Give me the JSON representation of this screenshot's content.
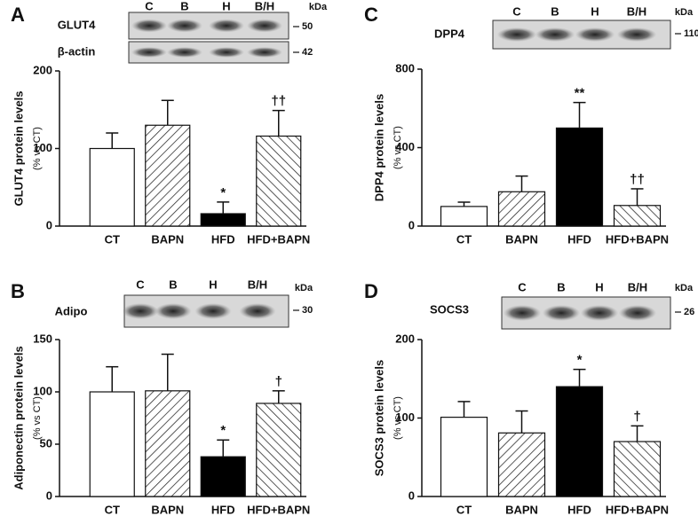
{
  "chart_data": [
    {
      "type": "bar",
      "panel": "A",
      "ylabel": "GLUT4 protein levels",
      "ylabel_sub": "(% vs CT)",
      "categories": [
        "CT",
        "BAPN",
        "HFD",
        "HFD+BAPN"
      ],
      "values": [
        100,
        130,
        16,
        116
      ],
      "errors": [
        20,
        32,
        15,
        33
      ],
      "bar_fills": [
        "white",
        "hatch",
        "black",
        "hatch-back"
      ],
      "significance": [
        null,
        null,
        "*",
        "††"
      ],
      "ylim": [
        0,
        200
      ],
      "yticks": [
        0,
        100,
        200
      ],
      "blot": {
        "lanes": [
          "C",
          "B",
          "H",
          "B/H"
        ],
        "unit": "kDa",
        "rows": [
          {
            "protein": "GLUT4",
            "marker": "50"
          },
          {
            "protein": "β-actin",
            "marker": "42"
          }
        ]
      }
    },
    {
      "type": "bar",
      "panel": "C",
      "ylabel": "DPP4 protein levels",
      "ylabel_sub": "(% vs CT)",
      "categories": [
        "CT",
        "BAPN",
        "HFD",
        "HFD+BAPN"
      ],
      "values": [
        100,
        175,
        500,
        105
      ],
      "errors": [
        22,
        80,
        130,
        85
      ],
      "bar_fills": [
        "white",
        "hatch",
        "black",
        "hatch-back"
      ],
      "significance": [
        null,
        null,
        "**",
        "††"
      ],
      "ylim": [
        0,
        800
      ],
      "yticks": [
        0,
        400,
        800
      ],
      "blot": {
        "lanes": [
          "C",
          "B",
          "H",
          "B/H"
        ],
        "unit": "kDa",
        "rows": [
          {
            "protein": "DPP4",
            "marker": "110"
          }
        ]
      }
    },
    {
      "type": "bar",
      "panel": "B",
      "ylabel": "Adiponectin protein levels",
      "ylabel_sub": "(% vs CT)",
      "categories": [
        "CT",
        "BAPN",
        "HFD",
        "HFD+BAPN"
      ],
      "values": [
        100,
        101,
        38,
        89
      ],
      "errors": [
        24,
        35,
        16,
        12
      ],
      "bar_fills": [
        "white",
        "hatch",
        "black",
        "hatch-back"
      ],
      "significance": [
        null,
        null,
        "*",
        "†"
      ],
      "ylim": [
        0,
        150
      ],
      "yticks": [
        0,
        50,
        100,
        150
      ],
      "blot": {
        "lanes": [
          "C",
          "B",
          "H",
          "B/H"
        ],
        "unit": "kDa",
        "rows": [
          {
            "protein": "Adipo",
            "marker": "30"
          }
        ]
      }
    },
    {
      "type": "bar",
      "panel": "D",
      "ylabel": "SOCS3 protein levels",
      "ylabel_sub": "(% vs CT)",
      "categories": [
        "CT",
        "BAPN",
        "HFD",
        "HFD+BAPN"
      ],
      "values": [
        101,
        81,
        140,
        70
      ],
      "errors": [
        20,
        28,
        22,
        20
      ],
      "bar_fills": [
        "white",
        "hatch",
        "black",
        "hatch-back"
      ],
      "significance": [
        null,
        null,
        "*",
        "†"
      ],
      "ylim": [
        0,
        200
      ],
      "yticks": [
        0,
        100,
        200
      ],
      "blot": {
        "lanes": [
          "C",
          "B",
          "H",
          "B/H"
        ],
        "unit": "kDa",
        "rows": [
          {
            "protein": "SOCS3",
            "marker": "26"
          }
        ]
      }
    }
  ]
}
